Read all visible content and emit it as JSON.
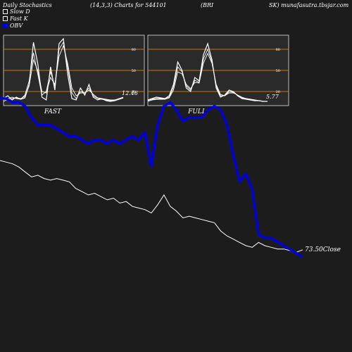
{
  "header": {
    "title": "Daily Stochastics",
    "params": "(14,3,3) Charts for 544101",
    "symbol_left": "(BRI",
    "symbol_right": "SK) munafasutra.tbsjar.com"
  },
  "legend": [
    {
      "label": "Slow  D",
      "color": "#ffffff"
    },
    {
      "label": "Fast K",
      "color": "#ffffff"
    },
    {
      "label": "OBV",
      "color": "#0000dd"
    }
  ],
  "footer": "",
  "chart_data": [
    {
      "type": "line",
      "title": "FAST",
      "ylim": [
        0,
        100
      ],
      "yticks": [
        20,
        50,
        80
      ],
      "reference_lines": [
        20,
        50,
        80
      ],
      "last_value_label": "12.46",
      "series": [
        {
          "values": [
            10,
            14,
            8,
            12,
            9,
            11,
            30,
            90,
            60,
            12,
            8,
            55,
            22,
            88,
            95,
            45,
            10,
            8,
            25,
            15,
            30,
            12,
            8,
            10,
            7,
            6,
            7,
            9,
            11
          ]
        },
        {
          "values": [
            8,
            10,
            12,
            10,
            9,
            15,
            35,
            75,
            45,
            15,
            20,
            48,
            28,
            80,
            90,
            55,
            18,
            10,
            20,
            18,
            25,
            14,
            10,
            9,
            8,
            7,
            8,
            10,
            12
          ]
        },
        {
          "values": [
            6,
            9,
            10,
            11,
            10,
            13,
            28,
            65,
            50,
            20,
            18,
            40,
            30,
            70,
            85,
            60,
            25,
            14,
            18,
            18,
            22,
            16,
            11,
            10,
            9,
            8,
            8,
            9,
            11
          ]
        }
      ]
    },
    {
      "type": "line",
      "title": "FULL",
      "ylim": [
        0,
        100
      ],
      "yticks": [
        20,
        50,
        80
      ],
      "reference_lines": [
        20,
        50,
        80
      ],
      "last_value_label": "5.77",
      "series": [
        {
          "values": [
            8,
            10,
            12,
            11,
            10,
            14,
            30,
            62,
            50,
            25,
            20,
            40,
            35,
            72,
            88,
            65,
            25,
            12,
            15,
            22,
            20,
            14,
            10,
            9,
            8,
            7,
            7,
            6,
            6
          ]
        },
        {
          "values": [
            7,
            9,
            10,
            10,
            10,
            12,
            26,
            55,
            48,
            28,
            22,
            36,
            33,
            66,
            80,
            62,
            28,
            14,
            14,
            20,
            19,
            15,
            11,
            10,
            9,
            8,
            7,
            6,
            6
          ]
        },
        {
          "values": [
            6,
            8,
            9,
            9,
            9,
            11,
            22,
            48,
            45,
            30,
            24,
            33,
            32,
            60,
            74,
            60,
            30,
            16,
            14,
            18,
            18,
            15,
            12,
            10,
            9,
            8,
            7,
            6,
            6
          ]
        }
      ]
    },
    {
      "type": "line",
      "title": "",
      "series": [
        {
          "name": "Close",
          "values": [
            128,
            127,
            126,
            124,
            121,
            118,
            119,
            117,
            116,
            117,
            116,
            115,
            111,
            109,
            107,
            108,
            106,
            104,
            105,
            102,
            103,
            100,
            99,
            98,
            96,
            101,
            107,
            100,
            97,
            93,
            94,
            93,
            92,
            91,
            90,
            85,
            82,
            80,
            78,
            76,
            75,
            78,
            76,
            75,
            74,
            74,
            73,
            72,
            73.5
          ],
          "last_label": "73.50"
        },
        {
          "name": "OBV",
          "values": [
            62,
            62,
            61,
            61,
            60,
            57,
            55,
            55,
            55,
            54,
            53,
            52,
            52,
            51,
            50,
            51,
            51,
            50,
            51,
            50,
            51,
            52,
            51,
            53,
            44,
            55,
            60,
            61,
            59,
            56,
            57,
            57,
            57,
            59,
            60,
            59,
            55,
            47,
            40,
            42,
            38,
            26,
            25,
            25,
            24,
            23,
            22,
            21,
            20
          ]
        }
      ]
    }
  ]
}
